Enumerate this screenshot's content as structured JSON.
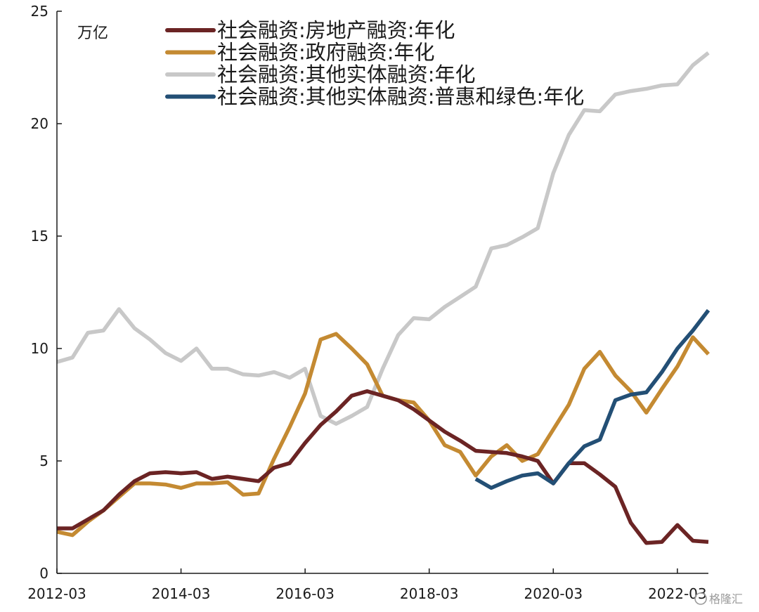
{
  "chart_data": {
    "type": "line",
    "title": "",
    "unit_label": "万亿",
    "xlabel": "",
    "ylabel": "",
    "ylim": [
      0,
      25
    ],
    "yticks": [
      0,
      5,
      10,
      15,
      20,
      25
    ],
    "x_tick_labels": [
      "2012-03",
      "2014-03",
      "2016-03",
      "2018-03",
      "2020-03",
      "2022-03"
    ],
    "x_tick_quarters": [
      0,
      8,
      16,
      24,
      32,
      40
    ],
    "x_range_quarters": [
      0,
      42
    ],
    "legend_position": "top",
    "grid": false,
    "series": [
      {
        "name": "社会融资:房地产融资:年化",
        "color": "#6b2424",
        "points": [
          [
            0,
            2.0
          ],
          [
            1,
            2.0
          ],
          [
            2,
            2.4
          ],
          [
            3,
            2.8
          ],
          [
            4,
            3.5
          ],
          [
            5,
            4.1
          ],
          [
            6,
            4.45
          ],
          [
            7,
            4.5
          ],
          [
            8,
            4.45
          ],
          [
            9,
            4.5
          ],
          [
            10,
            4.2
          ],
          [
            11,
            4.3
          ],
          [
            12,
            4.2
          ],
          [
            13,
            4.1
          ],
          [
            14,
            4.7
          ],
          [
            15,
            4.9
          ],
          [
            16,
            5.8
          ],
          [
            17,
            6.6
          ],
          [
            18,
            7.2
          ],
          [
            19,
            7.9
          ],
          [
            20,
            8.1
          ],
          [
            21,
            7.9
          ],
          [
            22,
            7.7
          ],
          [
            23,
            7.3
          ],
          [
            24,
            6.8
          ],
          [
            25,
            6.3
          ],
          [
            26,
            5.9
          ],
          [
            27,
            5.45
          ],
          [
            28,
            5.4
          ],
          [
            29,
            5.35
          ],
          [
            30,
            5.2
          ],
          [
            31,
            5.0
          ],
          [
            32,
            4.0
          ],
          [
            33,
            4.9
          ],
          [
            34,
            4.9
          ],
          [
            35,
            4.4
          ],
          [
            36,
            3.85
          ],
          [
            37,
            2.25
          ],
          [
            38,
            1.35
          ],
          [
            39,
            1.4
          ],
          [
            40,
            2.15
          ],
          [
            41,
            1.45
          ],
          [
            42,
            1.4
          ]
        ]
      },
      {
        "name": "社会融资:政府融资:年化",
        "color": "#c48a32",
        "points": [
          [
            0,
            1.85
          ],
          [
            1,
            1.7
          ],
          [
            2,
            2.3
          ],
          [
            3,
            2.8
          ],
          [
            4,
            3.4
          ],
          [
            5,
            4.0
          ],
          [
            6,
            4.0
          ],
          [
            7,
            3.95
          ],
          [
            8,
            3.8
          ],
          [
            9,
            4.0
          ],
          [
            10,
            4.0
          ],
          [
            11,
            4.05
          ],
          [
            12,
            3.5
          ],
          [
            13,
            3.55
          ],
          [
            14,
            5.1
          ],
          [
            15,
            6.5
          ],
          [
            16,
            8.0
          ],
          [
            17,
            10.4
          ],
          [
            18,
            10.65
          ],
          [
            19,
            10.0
          ],
          [
            20,
            9.3
          ],
          [
            21,
            7.9
          ],
          [
            22,
            7.7
          ],
          [
            23,
            7.6
          ],
          [
            24,
            6.8
          ],
          [
            25,
            5.7
          ],
          [
            26,
            5.4
          ],
          [
            27,
            4.35
          ],
          [
            28,
            5.2
          ],
          [
            29,
            5.7
          ],
          [
            30,
            5.0
          ],
          [
            31,
            5.3
          ],
          [
            32,
            6.4
          ],
          [
            33,
            7.5
          ],
          [
            34,
            9.1
          ],
          [
            35,
            9.85
          ],
          [
            36,
            8.8
          ],
          [
            37,
            8.1
          ],
          [
            38,
            7.15
          ],
          [
            39,
            8.2
          ],
          [
            40,
            9.2
          ],
          [
            41,
            10.5
          ],
          [
            42,
            9.75
          ]
        ]
      },
      {
        "name": "社会融资:其他实体融资:年化",
        "color": "#c8c8c8",
        "points": [
          [
            0,
            9.4
          ],
          [
            1,
            9.6
          ],
          [
            2,
            10.7
          ],
          [
            3,
            10.8
          ],
          [
            4,
            11.75
          ],
          [
            5,
            10.9
          ],
          [
            6,
            10.4
          ],
          [
            7,
            9.8
          ],
          [
            8,
            9.45
          ],
          [
            9,
            10.0
          ],
          [
            10,
            9.1
          ],
          [
            11,
            9.1
          ],
          [
            12,
            8.85
          ],
          [
            13,
            8.8
          ],
          [
            14,
            8.95
          ],
          [
            15,
            8.7
          ],
          [
            16,
            9.1
          ],
          [
            17,
            7.0
          ],
          [
            18,
            6.65
          ],
          [
            19,
            7.0
          ],
          [
            20,
            7.4
          ],
          [
            21,
            9.1
          ],
          [
            22,
            10.6
          ],
          [
            23,
            11.35
          ],
          [
            24,
            11.3
          ],
          [
            25,
            11.85
          ],
          [
            26,
            12.3
          ],
          [
            27,
            12.75
          ],
          [
            28,
            14.45
          ],
          [
            29,
            14.6
          ],
          [
            30,
            14.95
          ],
          [
            31,
            15.35
          ],
          [
            32,
            17.8
          ],
          [
            33,
            19.5
          ],
          [
            34,
            20.6
          ],
          [
            35,
            20.55
          ],
          [
            36,
            21.3
          ],
          [
            37,
            21.45
          ],
          [
            38,
            21.55
          ],
          [
            39,
            21.7
          ],
          [
            40,
            21.75
          ],
          [
            41,
            22.6
          ],
          [
            42,
            23.15
          ]
        ]
      },
      {
        "name": "社会融资:其他实体融资:普惠和绿色:年化",
        "color": "#234f75",
        "points": [
          [
            27,
            4.2
          ],
          [
            28,
            3.8
          ],
          [
            29,
            4.1
          ],
          [
            30,
            4.35
          ],
          [
            31,
            4.45
          ],
          [
            32,
            4.0
          ],
          [
            33,
            4.9
          ],
          [
            34,
            5.65
          ],
          [
            35,
            5.95
          ],
          [
            36,
            7.7
          ],
          [
            37,
            7.95
          ],
          [
            38,
            8.05
          ],
          [
            39,
            8.95
          ],
          [
            40,
            10.0
          ],
          [
            41,
            10.8
          ],
          [
            42,
            11.7
          ]
        ]
      }
    ]
  },
  "watermark": {
    "text": "格隆汇",
    "icon": "gelonghui-logo-icon"
  }
}
